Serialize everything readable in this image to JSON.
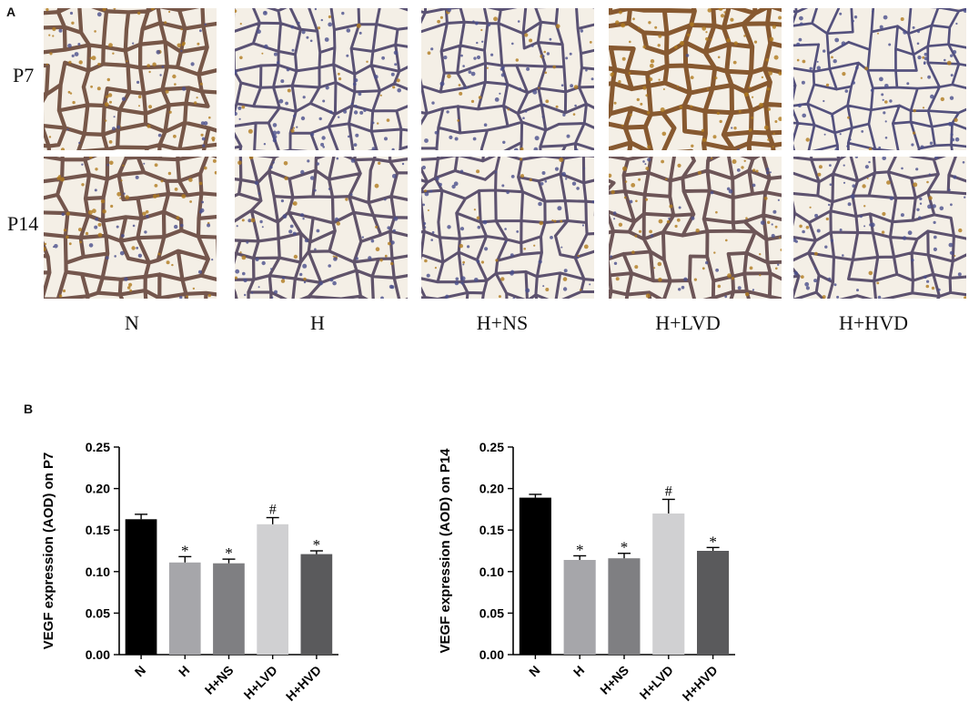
{
  "panel_a": {
    "letter": "A",
    "rows": [
      "P7",
      "P14"
    ],
    "columns": [
      "N",
      "H",
      "H+NS",
      "H+LVD",
      "H+HVD"
    ],
    "stain_colors": {
      "tissue": "#8a5a2b",
      "nuclei": "#4a4f8c",
      "positive": "#b07a1e",
      "background": "#f4efe6"
    },
    "stain_intensity": [
      [
        0.7,
        0.25,
        0.25,
        0.95,
        0.15
      ],
      [
        0.65,
        0.35,
        0.3,
        0.55,
        0.3
      ]
    ]
  },
  "panel_b": {
    "letter": "B"
  },
  "chart_data": [
    {
      "type": "bar",
      "categories": [
        "N",
        "H",
        "H+NS",
        "H+LVD",
        "H+HVD"
      ],
      "values": [
        0.163,
        0.111,
        0.11,
        0.157,
        0.121
      ],
      "errors": [
        0.006,
        0.007,
        0.005,
        0.008,
        0.004
      ],
      "annotations": [
        "",
        "*",
        "*",
        "#",
        "*"
      ],
      "colors": [
        "#000000",
        "#a6a6aa",
        "#7f7f82",
        "#d0d0d2",
        "#5a5a5c"
      ],
      "ylabel": "VEGF expression (AOD) on P7",
      "ylim": [
        0,
        0.25
      ],
      "yticks": [
        "0.00",
        "0.05",
        "0.10",
        "0.15",
        "0.20",
        "0.25"
      ]
    },
    {
      "type": "bar",
      "categories": [
        "N",
        "H",
        "H+NS",
        "H+LVD",
        "H+HVD"
      ],
      "values": [
        0.189,
        0.114,
        0.116,
        0.17,
        0.125
      ],
      "errors": [
        0.004,
        0.005,
        0.006,
        0.017,
        0.004
      ],
      "annotations": [
        "",
        "*",
        "*",
        "#",
        "*"
      ],
      "colors": [
        "#000000",
        "#a6a6aa",
        "#7f7f82",
        "#d0d0d2",
        "#5a5a5c"
      ],
      "ylabel": "VEGF expression (AOD) on P14",
      "ylim": [
        0,
        0.25
      ],
      "yticks": [
        "0.00",
        "0.05",
        "0.10",
        "0.15",
        "0.20",
        "0.25"
      ]
    }
  ]
}
